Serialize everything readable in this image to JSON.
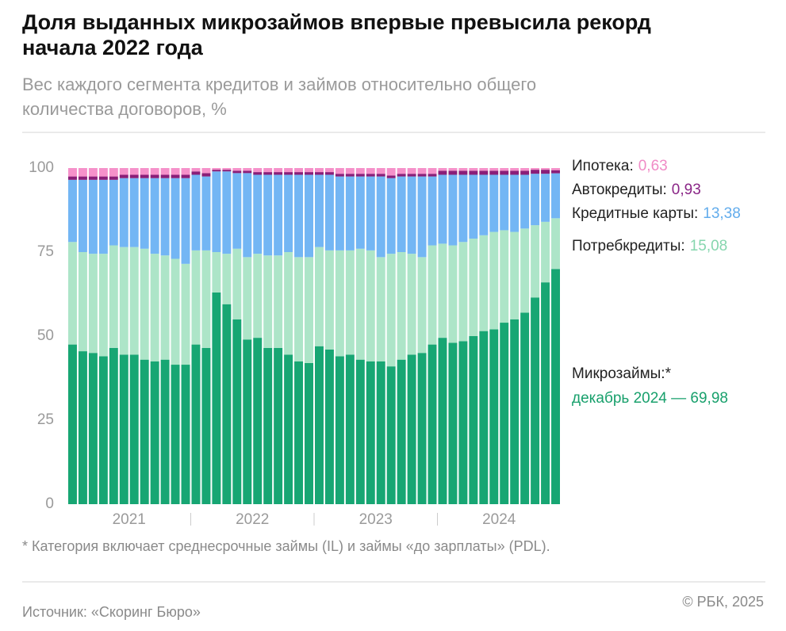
{
  "title": "Доля выданных микрозаймов впервые превысила рекорд начала 2022 года",
  "footnote": "* Категория включает среднесрочные займы (IL) и займы «до зарплаты» (PDL).",
  "source": "Источник: «Скоринг Бюро»",
  "copyright": "© РБК, 2025",
  "chart_data": {
    "type": "stacked-bar",
    "title_lines": [
      "Доля выданных микрозаймов впервые превысила рекорд",
      "начала 2022 года"
    ],
    "subtitle_lines": [
      "Вес каждого сегмента кредитов и займов относительно общего",
      "количества договоров, %"
    ],
    "categories": [
      null,
      null,
      null,
      null,
      null,
      null,
      null,
      null,
      null,
      null,
      null,
      null,
      null,
      null,
      null,
      null,
      null,
      null,
      null,
      null,
      null,
      null,
      null,
      null,
      null,
      null,
      null,
      null,
      null,
      null,
      null,
      null,
      null,
      null,
      null,
      null,
      null,
      null,
      null,
      null,
      null,
      null,
      null,
      null,
      null,
      null,
      null,
      null
    ],
    "x_groups": [
      "2021",
      "2022",
      "2023",
      "2024"
    ],
    "ylim": [
      0,
      100
    ],
    "yticks": [
      0,
      25,
      50,
      75,
      100
    ],
    "grid": false,
    "series": [
      {
        "name": "Микрозаймы:*",
        "color": "#17a673",
        "label_color": "#18a06c",
        "last_label": "декабрь 2024 — 69,98",
        "values": [
          47.5,
          45.5,
          45,
          44,
          46.5,
          44.5,
          44.5,
          43,
          42.5,
          43,
          41.5,
          41.5,
          47.5,
          46.5,
          63,
          59.5,
          55,
          49,
          49.5,
          46.5,
          46.5,
          44.5,
          42.5,
          42,
          47,
          46,
          44,
          44.5,
          43,
          42.5,
          42.5,
          41,
          43,
          44.5,
          45,
          47.5,
          49.5,
          48,
          48.5,
          50,
          51.5,
          52,
          54,
          55,
          57,
          61.5,
          66,
          69.98
        ]
      },
      {
        "name": "Потребкредиты:",
        "color": "#ade5c8",
        "label_color": "#86d6ae",
        "last_label": "15,08",
        "values": [
          30.5,
          29.5,
          29.5,
          30.5,
          30.5,
          32,
          32,
          33,
          32,
          31,
          31.5,
          30,
          28,
          29,
          12,
          15,
          21,
          24.5,
          25,
          27.5,
          27.5,
          30.5,
          31,
          31.5,
          29.5,
          29.5,
          31.5,
          31,
          33,
          33,
          31,
          33.5,
          32,
          30,
          28.5,
          29.5,
          28,
          29,
          29.5,
          29,
          28.5,
          29,
          27.5,
          26,
          25,
          21.5,
          18,
          15.08
        ]
      },
      {
        "name": "Кредитные карты:",
        "color": "#73b6f4",
        "label_color": "#62acec",
        "last_label": "13,38",
        "values": [
          18.5,
          21.5,
          22,
          22,
          19.5,
          20.5,
          20.5,
          21,
          22.5,
          23,
          24,
          25.5,
          22.5,
          22,
          24,
          24.5,
          22.5,
          25,
          23.5,
          24,
          24,
          23,
          24.5,
          24.5,
          21.5,
          22.5,
          22,
          22,
          21.5,
          22,
          24,
          22.5,
          22.5,
          23,
          24,
          20.5,
          20.5,
          21,
          20,
          19,
          18,
          17,
          16.5,
          17,
          16,
          15.3,
          14.3,
          13.38
        ]
      },
      {
        "name": "Автокредиты:",
        "color": "#8a1e78",
        "label_color": "#8a2586",
        "last_label": "0,93",
        "values": [
          1,
          1,
          1,
          1,
          1,
          1,
          1,
          1,
          1,
          1,
          1,
          1,
          1,
          1,
          0.5,
          0.5,
          0.7,
          0.7,
          0.8,
          0.8,
          0.8,
          0.8,
          0.8,
          0.8,
          0.8,
          0.8,
          0.8,
          0.8,
          0.8,
          0.8,
          0.8,
          0.8,
          0.8,
          0.8,
          0.8,
          0.8,
          1.2,
          1.2,
          1.2,
          1.2,
          1.2,
          1.2,
          1.2,
          1.2,
          1.2,
          1.2,
          1.2,
          0.93
        ]
      },
      {
        "name": "Ипотека:",
        "color": "#f591ca",
        "label_color": "#f08bc6",
        "last_label": "0,63",
        "values": [
          2.5,
          2.5,
          2.5,
          2.5,
          2.5,
          2,
          2,
          2,
          2,
          2,
          2,
          2,
          1,
          1.5,
          0.5,
          0.5,
          0.8,
          0.8,
          1.2,
          1.2,
          1.2,
          1.2,
          1.2,
          1.2,
          1.2,
          1.2,
          1.7,
          1.7,
          1.7,
          1.7,
          1.7,
          2.2,
          1.7,
          1.7,
          1.7,
          1.7,
          0.8,
          0.8,
          0.8,
          0.8,
          0.8,
          0.8,
          0.8,
          0.8,
          0.8,
          0.5,
          0.5,
          0.63
        ]
      }
    ]
  }
}
